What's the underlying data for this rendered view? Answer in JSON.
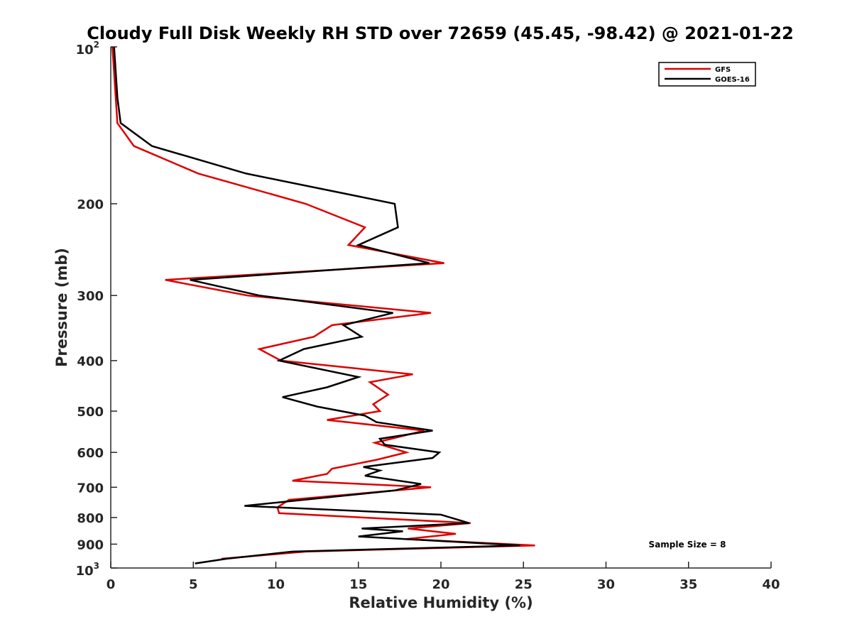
{
  "chart_data": {
    "type": "line",
    "title": "Cloudy Full Disk Weekly RH STD over 72659 (45.45, -98.42) @ 2021-01-22",
    "xlabel": "Relative Humidity (%)",
    "ylabel": "Pressure (mb)",
    "xlim": [
      0,
      40
    ],
    "ylim": [
      100,
      1000
    ],
    "y_scale": "log",
    "y_reversed": true,
    "x_ticks": [
      "0",
      "5",
      "10",
      "15",
      "20",
      "25",
      "30",
      "35",
      "40"
    ],
    "y_ticks": [
      {
        "value": 100,
        "base": "10",
        "exp": "2"
      },
      {
        "value": 200,
        "label": "200"
      },
      {
        "value": 300,
        "label": "300"
      },
      {
        "value": 400,
        "label": "400"
      },
      {
        "value": 500,
        "label": "500"
      },
      {
        "value": 600,
        "label": "600"
      },
      {
        "value": 700,
        "label": "700"
      },
      {
        "value": 800,
        "label": "800"
      },
      {
        "value": 900,
        "label": "900"
      },
      {
        "value": 1000,
        "base": "10",
        "exp": "3"
      }
    ],
    "grid": false,
    "legend_position": "top-right",
    "annotation": "Sample Size = 8",
    "series": [
      {
        "name": "GFS",
        "color": "#dd0000",
        "points": [
          [
            0.1,
            100
          ],
          [
            0.3,
            125
          ],
          [
            0.4,
            140
          ],
          [
            1.4,
            155
          ],
          [
            5.3,
            175
          ],
          [
            11.8,
            200
          ],
          [
            15.4,
            222
          ],
          [
            14.4,
            240
          ],
          [
            20.2,
            260
          ],
          [
            3.3,
            280
          ],
          [
            8.3,
            300
          ],
          [
            19.4,
            324
          ],
          [
            13.4,
            342
          ],
          [
            12.3,
            360
          ],
          [
            9.0,
            380
          ],
          [
            10.3,
            400
          ],
          [
            18.3,
            425
          ],
          [
            15.7,
            440
          ],
          [
            16.8,
            465
          ],
          [
            15.9,
            485
          ],
          [
            16.3,
            500
          ],
          [
            13.1,
            520
          ],
          [
            19.0,
            545
          ],
          [
            16.0,
            575
          ],
          [
            17.9,
            600
          ],
          [
            16.1,
            620
          ],
          [
            13.4,
            645
          ],
          [
            13.1,
            660
          ],
          [
            11.0,
            680
          ],
          [
            19.4,
            700
          ],
          [
            10.8,
            740
          ],
          [
            10.1,
            765
          ],
          [
            10.2,
            785
          ],
          [
            21.8,
            820
          ],
          [
            18.0,
            840
          ],
          [
            20.9,
            860
          ],
          [
            17.9,
            880
          ],
          [
            25.7,
            905
          ],
          [
            11.8,
            930
          ],
          [
            6.7,
            960
          ]
        ]
      },
      {
        "name": "GOES-16",
        "color": "#000000",
        "points": [
          [
            0.2,
            100
          ],
          [
            0.4,
            125
          ],
          [
            0.6,
            140
          ],
          [
            2.5,
            155
          ],
          [
            8.2,
            175
          ],
          [
            17.2,
            200
          ],
          [
            17.4,
            222
          ],
          [
            15.0,
            240
          ],
          [
            19.3,
            260
          ],
          [
            4.8,
            280
          ],
          [
            9.0,
            300
          ],
          [
            17.1,
            324
          ],
          [
            14.1,
            342
          ],
          [
            15.2,
            360
          ],
          [
            11.7,
            380
          ],
          [
            10.2,
            400
          ],
          [
            15.0,
            430
          ],
          [
            13.1,
            450
          ],
          [
            10.4,
            470
          ],
          [
            12.5,
            490
          ],
          [
            15.4,
            510
          ],
          [
            16.1,
            525
          ],
          [
            19.5,
            545
          ],
          [
            16.3,
            565
          ],
          [
            16.6,
            580
          ],
          [
            19.9,
            600
          ],
          [
            19.5,
            615
          ],
          [
            15.3,
            640
          ],
          [
            16.3,
            650
          ],
          [
            15.4,
            665
          ],
          [
            18.8,
            690
          ],
          [
            17.2,
            710
          ],
          [
            8.1,
            760
          ],
          [
            20.0,
            790
          ],
          [
            21.7,
            820
          ],
          [
            15.2,
            840
          ],
          [
            17.7,
            850
          ],
          [
            15.0,
            870
          ],
          [
            24.8,
            905
          ],
          [
            11.0,
            930
          ],
          [
            7.0,
            960
          ],
          [
            5.1,
            980
          ]
        ]
      }
    ]
  }
}
